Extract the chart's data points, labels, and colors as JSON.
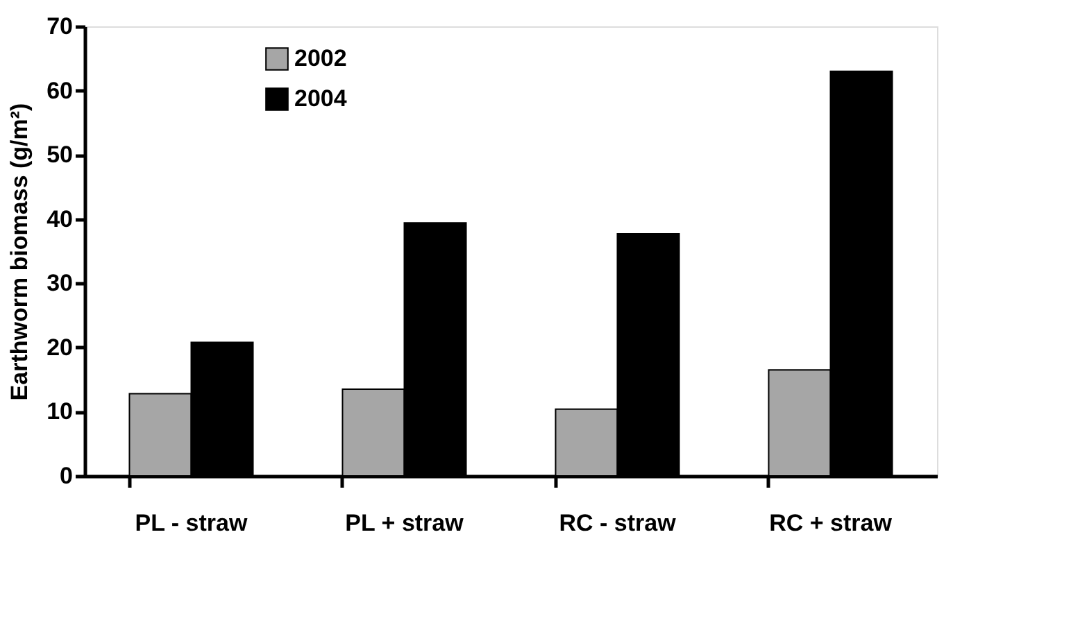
{
  "chart_data": {
    "type": "bar",
    "ylabel": "Earthworm biomass (g/m²)",
    "categories": [
      "PL - straw",
      "PL + straw",
      "RC - straw",
      "RC + straw"
    ],
    "series": [
      {
        "name": "2002",
        "color": "#a6a6a6",
        "values": [
          12.8,
          13.5,
          10.4,
          16.5
        ]
      },
      {
        "name": "2004",
        "color": "#000000",
        "values": [
          20.8,
          39.4,
          37.7,
          63.0
        ]
      }
    ],
    "ylim": [
      0,
      70
    ],
    "yticks": [
      0,
      10,
      20,
      30,
      40,
      50,
      60,
      70
    ],
    "legend": "top left",
    "grid": false
  }
}
